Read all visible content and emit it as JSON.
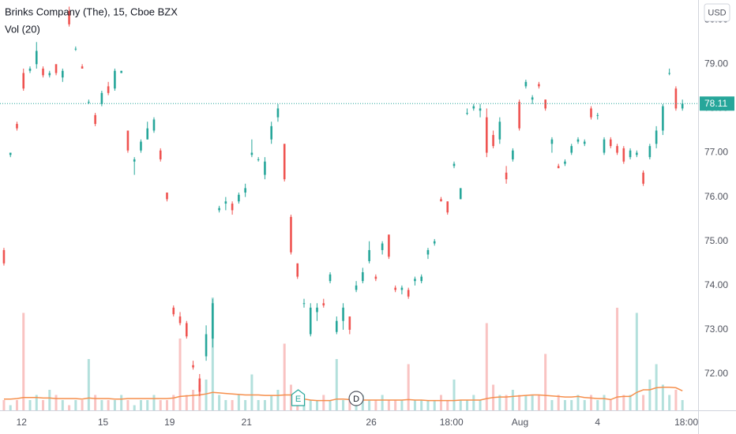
{
  "chart_data": {
    "type": "candlestick",
    "title": "Brinks Company (The), 15, Cboe BZX",
    "volume_title": "Vol (20)",
    "currency": "USD",
    "up_color": "#26a69a",
    "down_color": "#ef5350",
    "volume_ma_color": "#f68f4c",
    "ylim": [
      71.18,
      80.45
    ],
    "yticks": [
      {
        "value": 72,
        "label": "72.00"
      },
      {
        "value": 73,
        "label": "73.00"
      },
      {
        "value": 74,
        "label": "74.00"
      },
      {
        "value": 75,
        "label": "75.00"
      },
      {
        "value": 76,
        "label": "76.00"
      },
      {
        "value": 77,
        "label": "77.00"
      },
      {
        "value": 78,
        "label": "78.00"
      },
      {
        "value": 79,
        "label": "79.00"
      },
      {
        "value": 80,
        "label": "80.00"
      }
    ],
    "xlim": [
      -0.6,
      106.4
    ],
    "xticks": [
      {
        "value": 2.7,
        "label": "12"
      },
      {
        "value": 15.2,
        "label": "15"
      },
      {
        "value": 25.4,
        "label": "19"
      },
      {
        "value": 37.2,
        "label": "21"
      },
      {
        "value": 56.3,
        "label": "26"
      },
      {
        "value": 68.6,
        "label": "18:00"
      },
      {
        "value": 79.1,
        "label": "Aug"
      },
      {
        "value": 91,
        "label": "4"
      },
      {
        "value": 104.6,
        "label": "18:00"
      }
    ],
    "events": [
      {
        "value": 45.1,
        "label": "E"
      },
      {
        "value": 54,
        "label": "D"
      }
    ],
    "grid": true,
    "ohlc": [
      [
        74.8,
        74.85,
        74.45,
        74.5
      ],
      [
        76.95,
        77.0,
        76.9,
        77.0
      ],
      [
        77.65,
        77.7,
        77.5,
        77.55
      ],
      [
        78.8,
        78.9,
        78.4,
        78.45
      ],
      [
        78.85,
        78.95,
        78.8,
        78.9
      ],
      [
        79.0,
        79.5,
        78.9,
        79.3
      ],
      [
        78.9,
        78.95,
        78.7,
        78.75
      ],
      [
        78.75,
        78.85,
        78.7,
        78.8
      ],
      [
        79.0,
        79.0,
        78.75,
        78.8
      ],
      [
        78.7,
        78.9,
        78.6,
        78.85
      ],
      [
        80.2,
        80.3,
        79.85,
        79.9
      ],
      [
        79.35,
        79.4,
        79.3,
        79.35
      ],
      [
        78.95,
        79.0,
        78.9,
        78.9
      ],
      [
        78.15,
        78.2,
        78.1,
        78.15
      ],
      [
        77.85,
        77.9,
        77.6,
        77.65
      ],
      [
        78.1,
        78.4,
        78.05,
        78.35
      ],
      [
        78.5,
        78.6,
        78.3,
        78.35
      ],
      [
        78.45,
        78.9,
        78.4,
        78.85
      ],
      [
        78.8,
        78.85,
        78.8,
        78.85
      ],
      [
        77.5,
        77.5,
        77.0,
        77.05
      ],
      [
        76.8,
        76.9,
        76.5,
        76.85
      ],
      [
        77.05,
        77.3,
        77.0,
        77.25
      ],
      [
        77.3,
        77.7,
        77.3,
        77.55
      ],
      [
        77.5,
        77.8,
        77.45,
        77.75
      ],
      [
        77.05,
        77.1,
        76.8,
        76.85
      ],
      [
        76.1,
        76.1,
        75.9,
        75.95
      ],
      [
        73.5,
        73.55,
        73.3,
        73.35
      ],
      [
        73.3,
        73.4,
        73.1,
        73.15
      ],
      [
        73.15,
        73.2,
        72.8,
        72.85
      ],
      [
        72.2,
        72.3,
        72.1,
        72.15
      ],
      [
        71.9,
        72.0,
        71.5,
        71.6
      ],
      [
        72.4,
        73.1,
        72.3,
        72.9
      ],
      [
        72.8,
        73.7,
        72.6,
        73.6
      ],
      [
        75.7,
        75.8,
        75.65,
        75.75
      ],
      [
        75.85,
        76.0,
        75.7,
        75.9
      ],
      [
        75.85,
        75.9,
        75.6,
        75.7
      ],
      [
        75.9,
        76.1,
        75.85,
        76.05
      ],
      [
        76.1,
        76.3,
        76.0,
        76.2
      ],
      [
        76.95,
        77.3,
        76.9,
        77.0
      ],
      [
        76.85,
        76.9,
        76.8,
        76.85
      ],
      [
        76.5,
        76.9,
        76.4,
        76.8
      ],
      [
        77.3,
        77.7,
        77.2,
        77.6
      ],
      [
        77.8,
        78.1,
        77.7,
        78.0
      ],
      [
        77.2,
        77.2,
        76.35,
        76.4
      ],
      [
        75.55,
        75.6,
        74.7,
        74.75
      ],
      [
        74.5,
        74.5,
        74.15,
        74.2
      ],
      [
        73.6,
        73.7,
        73.5,
        73.6
      ],
      [
        72.9,
        73.6,
        72.85,
        73.5
      ],
      [
        73.4,
        73.6,
        73.2,
        73.5
      ],
      [
        73.6,
        73.7,
        73.5,
        73.55
      ],
      [
        74.1,
        74.3,
        74.05,
        74.25
      ],
      [
        72.95,
        73.3,
        72.9,
        73.2
      ],
      [
        73.2,
        73.6,
        73.0,
        73.5
      ],
      [
        73.3,
        73.3,
        72.9,
        73.0
      ],
      [
        73.9,
        74.1,
        73.85,
        74.0
      ],
      [
        74.1,
        74.4,
        74.05,
        74.3
      ],
      [
        74.55,
        75.0,
        74.5,
        74.8
      ],
      [
        74.2,
        74.25,
        74.1,
        74.15
      ],
      [
        74.8,
        75.0,
        74.7,
        74.95
      ],
      [
        75.15,
        75.15,
        74.6,
        74.65
      ],
      [
        73.95,
        74.0,
        73.85,
        73.9
      ],
      [
        73.9,
        74.0,
        73.8,
        73.95
      ],
      [
        73.9,
        73.95,
        73.7,
        73.75
      ],
      [
        74.1,
        74.2,
        74.0,
        74.15
      ],
      [
        74.1,
        74.25,
        74.05,
        74.2
      ],
      [
        74.7,
        74.85,
        74.6,
        74.8
      ],
      [
        74.95,
        75.05,
        74.9,
        75.0
      ],
      [
        75.95,
        76.0,
        75.9,
        75.9
      ],
      [
        75.9,
        75.9,
        75.6,
        75.65
      ],
      [
        76.7,
        76.8,
        76.65,
        76.75
      ],
      [
        75.95,
        76.2,
        75.95,
        76.2
      ],
      [
        77.9,
        78.0,
        77.85,
        77.9
      ],
      [
        78.0,
        78.1,
        77.95,
        78.05
      ],
      [
        77.95,
        78.1,
        77.8,
        78.0
      ],
      [
        77.8,
        78.0,
        76.9,
        77.0
      ],
      [
        77.4,
        77.5,
        77.1,
        77.15
      ],
      [
        77.3,
        77.8,
        77.2,
        77.7
      ],
      [
        76.55,
        76.7,
        76.3,
        76.4
      ],
      [
        76.85,
        77.1,
        76.8,
        77.05
      ],
      [
        78.15,
        78.2,
        77.5,
        77.55
      ],
      [
        78.5,
        78.65,
        78.45,
        78.6
      ],
      [
        78.2,
        78.3,
        78.1,
        78.25
      ],
      [
        78.55,
        78.6,
        78.45,
        78.5
      ],
      [
        78.2,
        78.2,
        77.95,
        78.0
      ],
      [
        77.2,
        77.35,
        77.0,
        77.3
      ],
      [
        76.7,
        76.75,
        76.65,
        76.65
      ],
      [
        76.75,
        76.85,
        76.7,
        76.8
      ],
      [
        77.0,
        77.2,
        76.95,
        77.15
      ],
      [
        77.25,
        77.35,
        77.2,
        77.3
      ],
      [
        77.2,
        77.3,
        77.15,
        77.25
      ],
      [
        78.0,
        78.05,
        77.75,
        77.8
      ],
      [
        77.85,
        77.9,
        77.75,
        77.85
      ],
      [
        77.0,
        77.35,
        76.95,
        77.3
      ],
      [
        77.3,
        77.35,
        77.1,
        77.15
      ],
      [
        77.15,
        77.2,
        76.95,
        77.0
      ],
      [
        77.1,
        77.15,
        76.75,
        76.8
      ],
      [
        76.9,
        77.1,
        76.85,
        77.05
      ],
      [
        76.95,
        77.05,
        76.9,
        77.0
      ],
      [
        76.55,
        76.6,
        76.25,
        76.3
      ],
      [
        76.9,
        77.2,
        76.85,
        77.15
      ],
      [
        77.2,
        77.6,
        77.1,
        77.5
      ],
      [
        77.5,
        78.1,
        77.4,
        78.05
      ],
      [
        78.8,
        78.9,
        78.75,
        78.8
      ],
      [
        78.45,
        78.5,
        77.95,
        78.0
      ],
      [
        78.0,
        78.2,
        77.95,
        78.11
      ]
    ],
    "volume_ylim": [
      0,
      40
    ],
    "volume": [
      2,
      1,
      2,
      19,
      2,
      3,
      2,
      4,
      3,
      2,
      1,
      2,
      2,
      10,
      3,
      2,
      2,
      2,
      3,
      2,
      1,
      2,
      2,
      3,
      2,
      2,
      3,
      14,
      3,
      4,
      5,
      6,
      22,
      3,
      2,
      2,
      3,
      2,
      7,
      2,
      2,
      3,
      4,
      13,
      5,
      3,
      2,
      2,
      2,
      3,
      2,
      10,
      2,
      2,
      2,
      3,
      2,
      2,
      3,
      2,
      2,
      2,
      9,
      2,
      2,
      2,
      2,
      3,
      2,
      6,
      2,
      2,
      3,
      2,
      17,
      5,
      3,
      3,
      4,
      3,
      3,
      3,
      3,
      11,
      2,
      3,
      2,
      2,
      3,
      2,
      3,
      2,
      3,
      2,
      20,
      3,
      3,
      19,
      3,
      6,
      9,
      5,
      3,
      4,
      2
    ],
    "volume_ma": [
      2.2,
      2.2,
      2.3,
      2.5,
      2.5,
      2.5,
      2.4,
      2.4,
      2.3,
      2.3,
      2.3,
      2.3,
      2.2,
      2.4,
      2.3,
      2.3,
      2.3,
      2.2,
      2.2,
      2.3,
      2.3,
      2.3,
      2.3,
      2.3,
      2.3,
      2.3,
      2.4,
      2.7,
      2.8,
      2.9,
      3.0,
      3.2,
      3.5,
      3.4,
      3.3,
      3.2,
      3.1,
      3.0,
      3.0,
      3.0,
      2.9,
      2.9,
      2.9,
      3.0,
      3.0,
      2.6,
      2.2,
      2.0,
      1.9,
      1.9,
      1.9,
      2.2,
      2.2,
      2.1,
      2.0,
      2.0,
      2.0,
      2.0,
      2.0,
      2.0,
      2.0,
      2.0,
      2.1,
      2.0,
      2.0,
      1.9,
      1.9,
      1.9,
      1.9,
      1.9,
      2.0,
      2.0,
      2.0,
      2.0,
      2.3,
      2.5,
      2.6,
      2.6,
      2.7,
      2.8,
      2.9,
      3.0,
      3.0,
      2.9,
      2.8,
      2.7,
      2.6,
      2.6,
      2.7,
      2.5,
      2.4,
      2.3,
      2.3,
      2.1,
      2.6,
      2.7,
      2.7,
      3.5,
      4.0,
      4.0,
      4.4,
      4.5,
      4.5,
      4.4,
      3.8
    ]
  }
}
